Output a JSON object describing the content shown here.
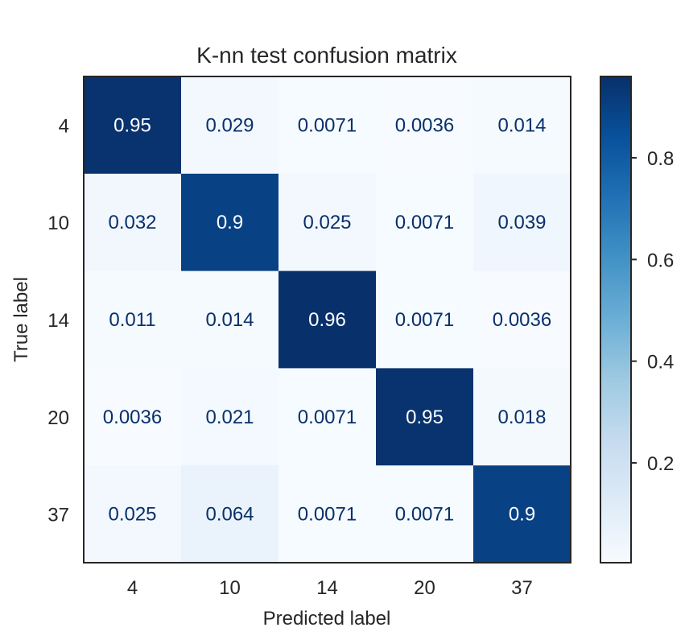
{
  "chart_data": {
    "type": "heatmap",
    "title": "K-nn test confusion matrix",
    "xlabel": "Predicted label",
    "ylabel": "True label",
    "x_categories": [
      "4",
      "10",
      "14",
      "20",
      "37"
    ],
    "y_categories": [
      "4",
      "10",
      "14",
      "20",
      "37"
    ],
    "values": [
      [
        0.95,
        0.029,
        0.0071,
        0.0036,
        0.014
      ],
      [
        0.032,
        0.9,
        0.025,
        0.0071,
        0.039
      ],
      [
        0.011,
        0.014,
        0.96,
        0.0071,
        0.0036
      ],
      [
        0.0036,
        0.021,
        0.0071,
        0.95,
        0.018
      ],
      [
        0.025,
        0.064,
        0.0071,
        0.0071,
        0.9
      ]
    ],
    "cell_labels": [
      [
        "0.95",
        "0.029",
        "0.0071",
        "0.0036",
        "0.014"
      ],
      [
        "0.032",
        "0.9",
        "0.025",
        "0.0071",
        "0.039"
      ],
      [
        "0.011",
        "0.014",
        "0.96",
        "0.0071",
        "0.0036"
      ],
      [
        "0.0036",
        "0.021",
        "0.0071",
        "0.95",
        "0.018"
      ],
      [
        "0.025",
        "0.064",
        "0.0071",
        "0.0071",
        "0.9"
      ]
    ],
    "colormap": "Blues",
    "colorbar": {
      "ticks": [
        0.2,
        0.4,
        0.6,
        0.8
      ],
      "tick_labels": [
        "0.2",
        "0.4",
        "0.6",
        "0.8"
      ],
      "range": [
        0.0036,
        0.96
      ]
    },
    "colors": {
      "dark_text": "#08306b",
      "light_text": "#ffffff",
      "axis": "#262626"
    },
    "grid": false
  }
}
